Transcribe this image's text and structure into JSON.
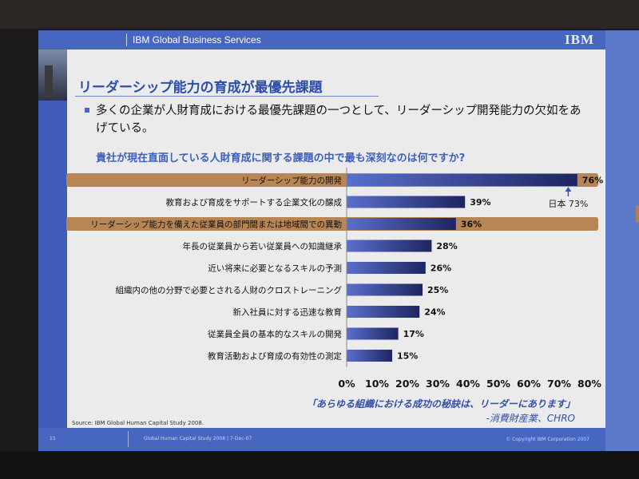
{
  "header": {
    "title": "IBM Global Business Services",
    "logo_text": "IBM"
  },
  "slide": {
    "title": "リーダーシップ能力の育成が最優先課題",
    "bullet": "多くの企業が人財育成における最優先課題の一つとして、リーダーシップ開発能力の欠如をあげている。",
    "question": "貴社が現在直面している人財育成に関する課題の中で最も深刻なのは何ですか?",
    "quote": "「あらゆる組織における成功の秘訣は、リーダーにあります」",
    "quote_attribution": "-消費財産業、CHRO",
    "source": "Source: IBM Global Human Capital Study 2008."
  },
  "footer": {
    "page": "15",
    "center": "Global Human Capital Study 2008  |  7-Dec-07",
    "copyright": "© Copyright IBM Corporation 2007"
  },
  "colors": {
    "header_blue": "#4666c0",
    "title_blue": "#2d4ea8",
    "highlight_band": "#b88555",
    "bar_dark": "#1e2560",
    "bar_light": "#5a6fcc"
  },
  "chart_data": {
    "type": "bar",
    "orientation": "horizontal",
    "categories": [
      "リーダーシップ能力の開発",
      "教育および育成をサポートする企業文化の醸成",
      "リーダーシップ能力を備えた従業員の部門間または地域間での異動",
      "年長の従業員から若い従業員への知識継承",
      "近い将来に必要となるスキルの予測",
      "組織内の他の分野で必要とされる人財のクロストレーニング",
      "新入社員に対する迅速な教育",
      "従業員全員の基本的なスキルの開発",
      "教育活動および育成の有効性の測定"
    ],
    "values": [
      76,
      39,
      36,
      28,
      26,
      25,
      24,
      17,
      15
    ],
    "value_labels": [
      "76%",
      "39%",
      "36%",
      "28%",
      "26%",
      "25%",
      "24%",
      "17%",
      "15%"
    ],
    "highlighted": [
      true,
      false,
      true,
      false,
      false,
      false,
      false,
      false,
      false
    ],
    "xlim": [
      0,
      80
    ],
    "xticks": [
      "0%",
      "10%",
      "20%",
      "30%",
      "40%",
      "50%",
      "60%",
      "70%",
      "80%"
    ],
    "annotation": {
      "text": "日本 73%",
      "value": 73
    }
  }
}
